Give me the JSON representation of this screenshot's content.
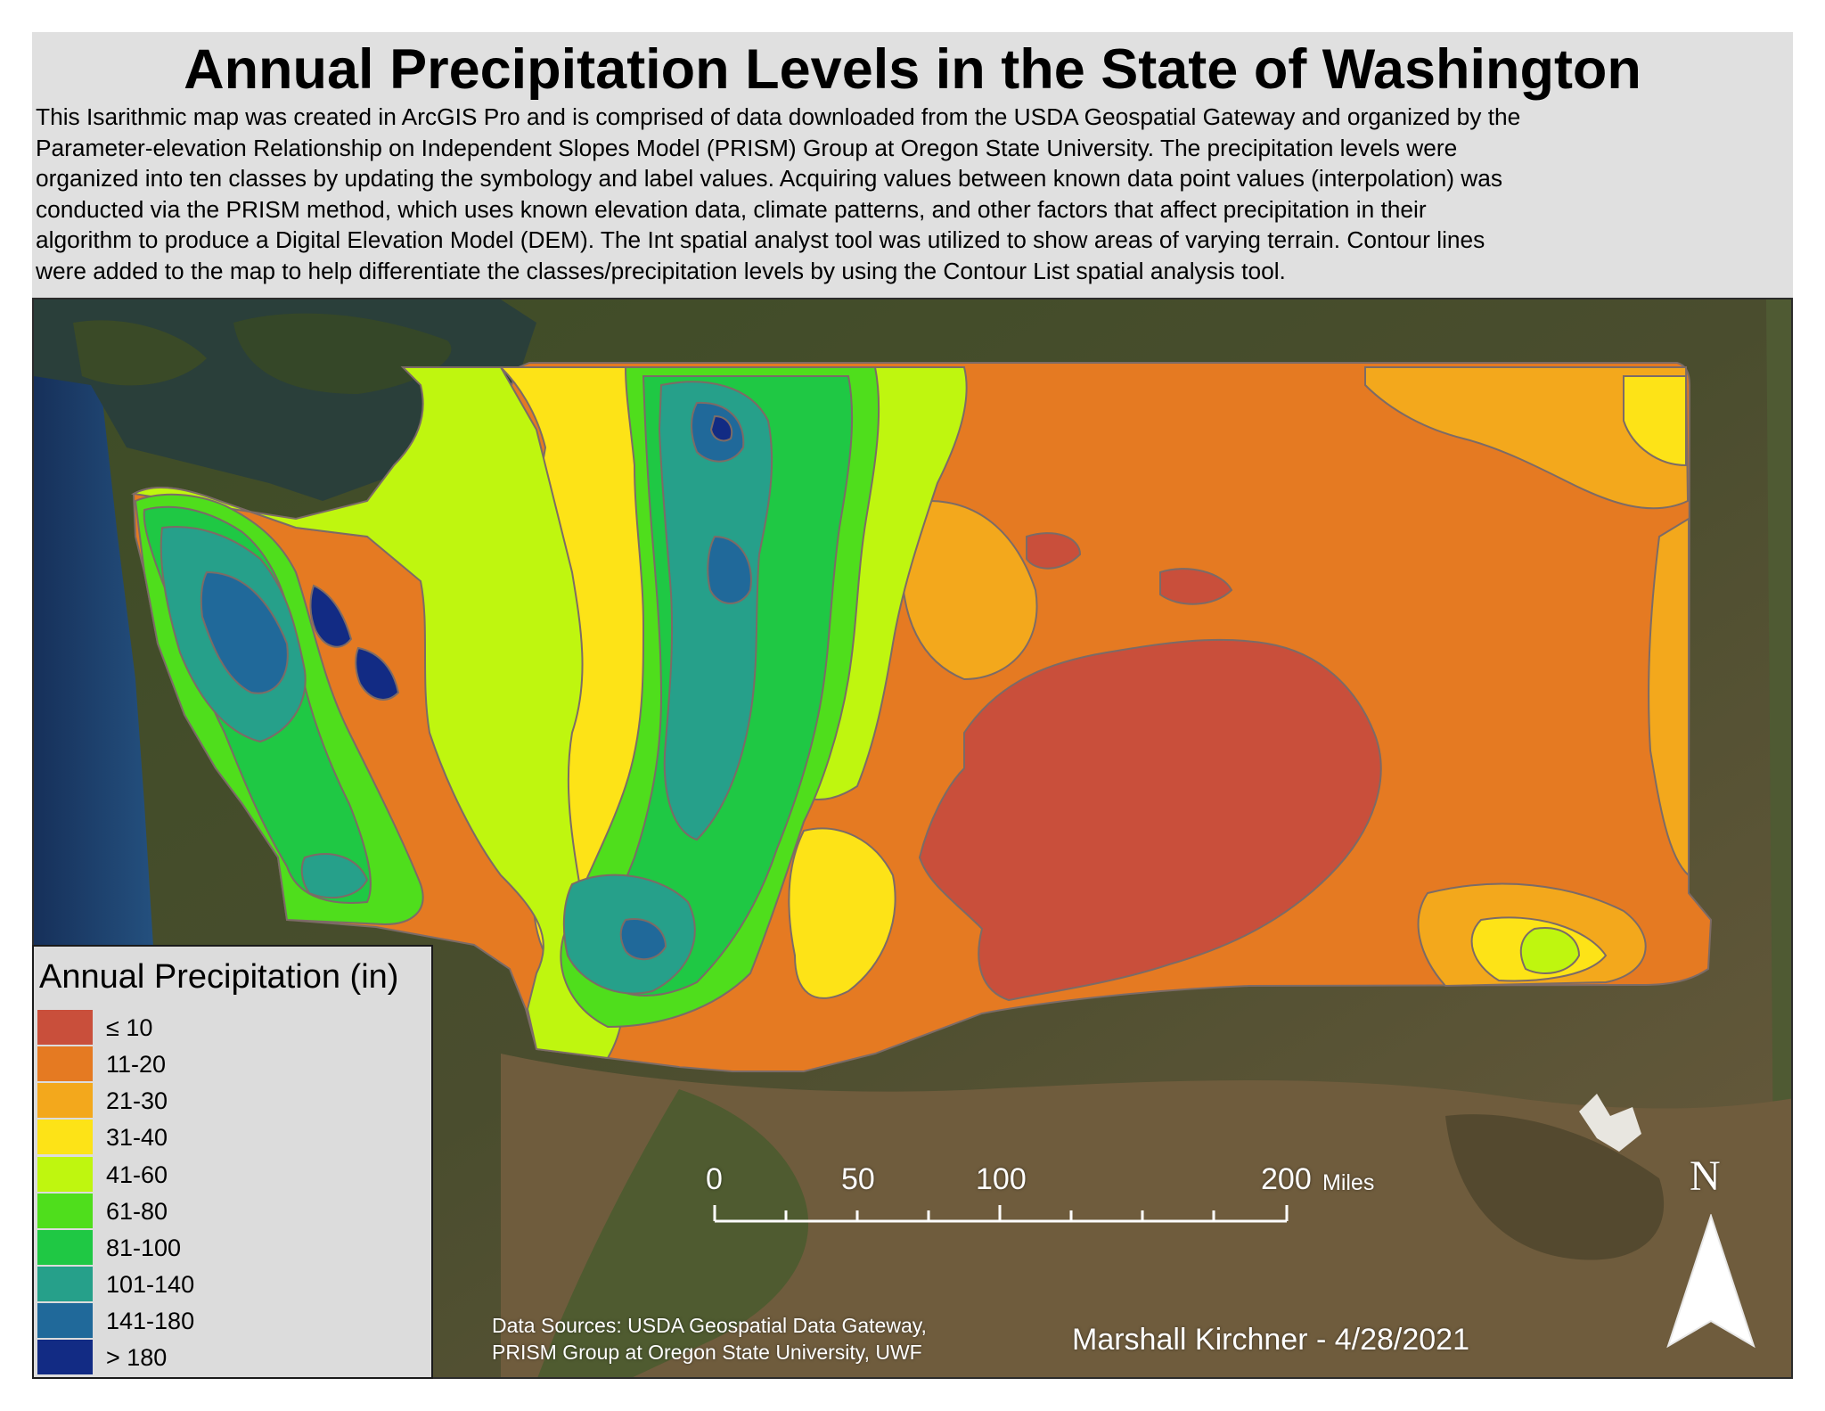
{
  "header": {
    "title": "Annual Precipitation Levels in the State of Washington",
    "description_lines": [
      "This Isarithmic map was created in ArcGIS Pro and is comprised of data downloaded from the USDA Geospatial Gateway and organized by the",
      "Parameter-elevation Relationship on Independent Slopes Model (PRISM) Group at Oregon State University. The precipitation levels were",
      "organized into ten classes by updating the symbology and label values. Acquiring values between known data point values (interpolation) was",
      "conducted via the PRISM method, which uses known elevation data, climate patterns, and other factors that affect precipitation in their",
      "algorithm to produce a Digital Elevation Model (DEM). The Int spatial analyst tool was utilized to show areas of varying terrain. Contour lines",
      "were added to the map to help differentiate the classes/precipitation levels by using the Contour List spatial analysis tool."
    ]
  },
  "legend": {
    "title": "Annual Precipitation (in)",
    "classes": [
      {
        "label": "≤ 10",
        "color": "#c94f3b"
      },
      {
        "label": "11-20",
        "color": "#e57a22"
      },
      {
        "label": "21-30",
        "color": "#f3a81c"
      },
      {
        "label": "31-40",
        "color": "#fde317"
      },
      {
        "label": "41-60",
        "color": "#bff60f"
      },
      {
        "label": "61-80",
        "color": "#4fde1c"
      },
      {
        "label": "81-100",
        "color": "#1fc844"
      },
      {
        "label": "101-140",
        "color": "#26a08a"
      },
      {
        "label": "141-180",
        "color": "#20699a"
      },
      {
        "label": "> 180",
        "color": "#122b84"
      }
    ]
  },
  "scale_bar": {
    "labels": [
      "0",
      "50",
      "100",
      "200"
    ],
    "units": "Miles"
  },
  "north_arrow": {
    "label": "N"
  },
  "credits": {
    "sources_lines": [
      "Data Sources: USDA Geospatial Data Gateway,",
      "PRISM Group at Oregon State University, UWF"
    ],
    "author": "Marshall Kirchner - 4/28/2021"
  },
  "colors": {
    "header_bg": "#e0e0e0",
    "legend_bg": "#dcdcdc",
    "ocean": "#1d3f6f",
    "land_green": "#3e4f24",
    "land_brown": "#6e5b3c",
    "contour": "#7c6b66"
  }
}
